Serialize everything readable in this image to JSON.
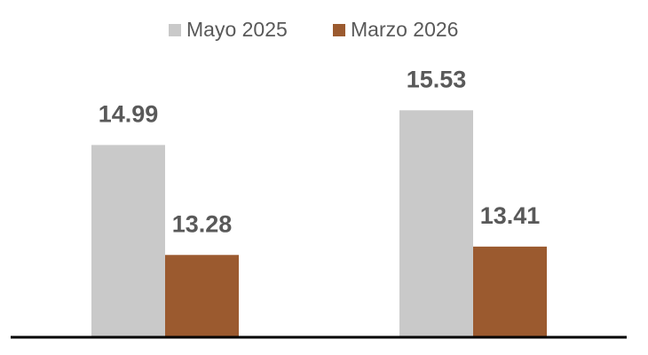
{
  "chart_data": {
    "type": "bar",
    "categories": [
      null,
      null
    ],
    "series": [
      {
        "name": "Mayo 2025",
        "color": "#c9c9c9",
        "values": [
          14.99,
          15.53
        ]
      },
      {
        "name": "Marzo 2026",
        "color": "#9b5a2f",
        "values": [
          13.28,
          13.41
        ]
      }
    ],
    "ylim": [
      12,
      16.5
    ]
  }
}
